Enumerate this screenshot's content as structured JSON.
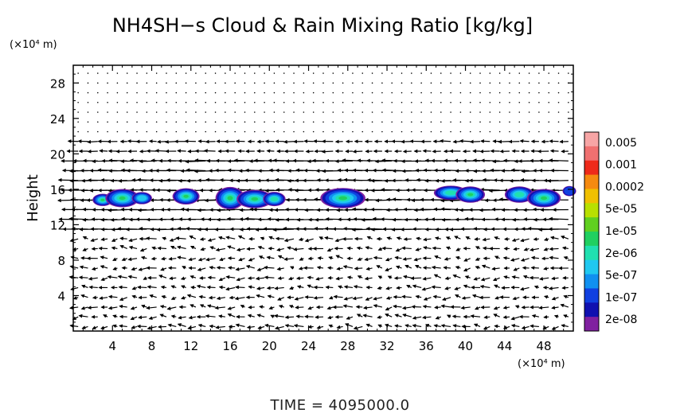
{
  "chart_data": {
    "type": "heatmap",
    "title": "NH4SH−s Cloud & Rain Mixing Ratio [kg/kg]",
    "ylabel": "Height",
    "y_unit": "(×10⁴ m)",
    "x_unit": "(×10⁴ m)",
    "footer": "TIME = 4095000.0",
    "xlim": [
      0,
      51
    ],
    "ylim": [
      0,
      30
    ],
    "x_ticks": [
      "4",
      "8",
      "12",
      "16",
      "20",
      "24",
      "28",
      "32",
      "36",
      "40",
      "44",
      "48"
    ],
    "y_ticks": [
      "4",
      "8",
      "12",
      "16",
      "20",
      "24",
      "28"
    ],
    "colorbar": {
      "labels": [
        "0.005",
        "0.001",
        "0.0002",
        "5e-05",
        "1e-05",
        "2e-06",
        "5e-07",
        "1e-07",
        "2e-08"
      ],
      "colors": [
        "#f7a5a5",
        "#f07070",
        "#ee2a1a",
        "#f58a10",
        "#f0c000",
        "#b8e000",
        "#60d020",
        "#20d060",
        "#20e0b0",
        "#20c8f0",
        "#1090f0",
        "#1040e0",
        "#1010b0",
        "#8020a0"
      ]
    },
    "clouds": [
      {
        "x": 3.0,
        "y": 14.8,
        "rx": 0.9,
        "ry": 0.6,
        "level": 7
      },
      {
        "x": 5.0,
        "y": 15.0,
        "rx": 1.5,
        "ry": 0.9,
        "level": 7
      },
      {
        "x": 7.0,
        "y": 15.0,
        "rx": 0.9,
        "ry": 0.6,
        "level": 9
      },
      {
        "x": 11.5,
        "y": 15.2,
        "rx": 1.2,
        "ry": 0.8,
        "level": 7
      },
      {
        "x": 16.0,
        "y": 15.0,
        "rx": 1.3,
        "ry": 1.1,
        "level": 6
      },
      {
        "x": 18.5,
        "y": 14.9,
        "rx": 1.6,
        "ry": 0.9,
        "level": 6
      },
      {
        "x": 20.5,
        "y": 14.9,
        "rx": 1.0,
        "ry": 0.7,
        "level": 8
      },
      {
        "x": 27.5,
        "y": 15.0,
        "rx": 2.0,
        "ry": 1.0,
        "level": 6
      },
      {
        "x": 38.5,
        "y": 15.6,
        "rx": 1.5,
        "ry": 0.7,
        "level": 8
      },
      {
        "x": 40.5,
        "y": 15.4,
        "rx": 1.3,
        "ry": 0.8,
        "level": 7
      },
      {
        "x": 45.5,
        "y": 15.4,
        "rx": 1.3,
        "ry": 0.8,
        "level": 8
      },
      {
        "x": 48.0,
        "y": 15.0,
        "rx": 1.5,
        "ry": 0.9,
        "level": 6
      },
      {
        "x": 50.6,
        "y": 15.8,
        "rx": 0.6,
        "ry": 0.5,
        "level": 11
      }
    ]
  }
}
